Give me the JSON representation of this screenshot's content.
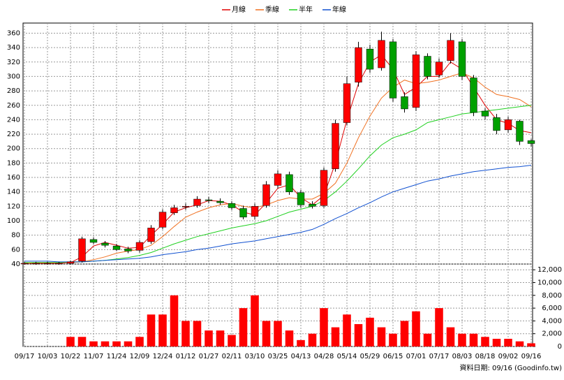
{
  "chart_data": {
    "type": "candlestick",
    "legend": "top",
    "grid": true,
    "categories": [
      "09/17",
      null,
      "10/03",
      null,
      "10/22",
      null,
      "11/07",
      null,
      "11/24",
      null,
      "12/09",
      null,
      "12/24",
      null,
      "01/12",
      null,
      "01/27",
      null,
      "02/11",
      null,
      "03/10",
      null,
      "03/25",
      null,
      "04/13",
      null,
      "04/28",
      null,
      "05/14",
      null,
      "05/29",
      null,
      "06/15",
      null,
      "07/01",
      null,
      "07/17",
      null,
      "08/03",
      null,
      "08/18",
      null,
      "09/02",
      null,
      "09/16"
    ],
    "candles": {
      "up_color": "#ff0000",
      "down_color": "#00a000",
      "open": [
        41,
        41,
        41,
        41,
        41,
        44,
        74,
        69,
        65,
        61,
        59,
        71,
        91,
        111,
        119,
        121,
        129,
        127,
        124,
        117,
        106,
        121,
        149,
        164,
        139,
        123,
        121,
        172,
        236,
        292,
        338,
        312,
        348,
        272,
        257,
        328,
        302,
        322,
        348,
        298,
        252,
        243,
        226,
        238,
        211
      ],
      "high": [
        43,
        43,
        43,
        43,
        45,
        78,
        77,
        72,
        68,
        64,
        73,
        94,
        116,
        122,
        124,
        134,
        133,
        131,
        127,
        121,
        124,
        155,
        170,
        168,
        143,
        127,
        174,
        240,
        300,
        348,
        344,
        362,
        352,
        278,
        335,
        332,
        325,
        360,
        352,
        302,
        256,
        248,
        244,
        240,
        213
      ],
      "low": [
        39,
        39,
        39,
        39,
        39,
        42,
        68,
        63,
        58,
        55,
        56,
        68,
        88,
        108,
        115,
        118,
        124,
        122,
        115,
        102,
        102,
        118,
        145,
        136,
        118,
        117,
        118,
        168,
        232,
        286,
        305,
        308,
        265,
        250,
        252,
        296,
        298,
        318,
        295,
        245,
        240,
        220,
        222,
        205,
        203
      ],
      "close": [
        41,
        41,
        41,
        41,
        43,
        75,
        70,
        66,
        60,
        58,
        70,
        90,
        112,
        118,
        120,
        130,
        128,
        125,
        118,
        105,
        120,
        150,
        165,
        140,
        122,
        120,
        170,
        235,
        290,
        340,
        310,
        350,
        270,
        255,
        330,
        300,
        320,
        350,
        300,
        250,
        245,
        225,
        240,
        210,
        207
      ]
    },
    "series": [
      {
        "name": "月線",
        "color": "#e00000",
        "values": [
          41,
          41,
          41,
          41,
          42,
          50,
          65,
          70,
          66,
          62,
          63,
          80,
          95,
          112,
          118,
          122,
          128,
          127,
          122,
          112,
          108,
          125,
          145,
          150,
          132,
          122,
          135,
          180,
          240,
          290,
          320,
          330,
          310,
          275,
          285,
          300,
          300,
          320,
          310,
          285,
          260,
          240,
          235,
          225,
          222
        ]
      },
      {
        "name": "季線",
        "color": "#f07020",
        "values": [
          41,
          42,
          42,
          42,
          42,
          43,
          46,
          50,
          55,
          58,
          60,
          66,
          78,
          92,
          105,
          112,
          118,
          122,
          124,
          120,
          118,
          122,
          128,
          132,
          130,
          130,
          138,
          152,
          180,
          215,
          245,
          270,
          285,
          295,
          290,
          292,
          295,
          300,
          305,
          298,
          285,
          275,
          272,
          268,
          258
        ]
      },
      {
        "name": "半年",
        "color": "#20d020",
        "values": [
          42,
          42,
          42,
          42,
          43,
          43,
          44,
          45,
          47,
          49,
          52,
          56,
          62,
          68,
          73,
          78,
          82,
          86,
          90,
          93,
          96,
          100,
          106,
          112,
          116,
          120,
          128,
          140,
          155,
          172,
          190,
          205,
          215,
          220,
          226,
          236,
          240,
          244,
          248,
          250,
          252,
          254,
          256,
          258,
          260
        ]
      },
      {
        "name": "年線",
        "color": "#1050d0",
        "values": [
          44,
          44,
          44,
          43,
          43,
          43,
          44,
          45,
          46,
          47,
          48,
          50,
          53,
          55,
          57,
          60,
          62,
          65,
          68,
          70,
          72,
          75,
          78,
          81,
          84,
          88,
          95,
          103,
          110,
          118,
          125,
          133,
          140,
          145,
          150,
          155,
          158,
          162,
          165,
          168,
          170,
          172,
          174,
          175,
          177
        ]
      }
    ],
    "ylim": [
      40,
      374
    ],
    "yticks": [
      40,
      60,
      80,
      100,
      120,
      140,
      160,
      180,
      200,
      220,
      240,
      260,
      280,
      300,
      320,
      340,
      360
    ],
    "volume": {
      "color": "#ff0000",
      "axis": "y2",
      "values": [
        0,
        0,
        0,
        0,
        1500,
        1500,
        800,
        800,
        800,
        800,
        1500,
        5000,
        5000,
        8000,
        4000,
        4000,
        2500,
        2500,
        1800,
        6000,
        8000,
        4000,
        4000,
        2500,
        1000,
        2000,
        6000,
        3000,
        5000,
        3500,
        4500,
        3000,
        2000,
        4000,
        5500,
        2000,
        6000,
        3000,
        2000,
        2000,
        1500,
        1200,
        1200,
        800,
        500
      ]
    },
    "y2lim": [
      0,
      12900
    ],
    "y2ticks": [
      0,
      {
        "value": 2000,
        "label": "2,000"
      },
      {
        "value": 4000,
        "label": "4,000"
      },
      {
        "value": 6000,
        "label": "6,000"
      },
      {
        "value": 8000,
        "label": "8,000"
      },
      {
        "value": 10000,
        "label": "10,000"
      },
      {
        "value": 12000,
        "label": "12,000"
      }
    ],
    "footnote": "資料日期: 09/16  (Goodinfo.tw)"
  }
}
